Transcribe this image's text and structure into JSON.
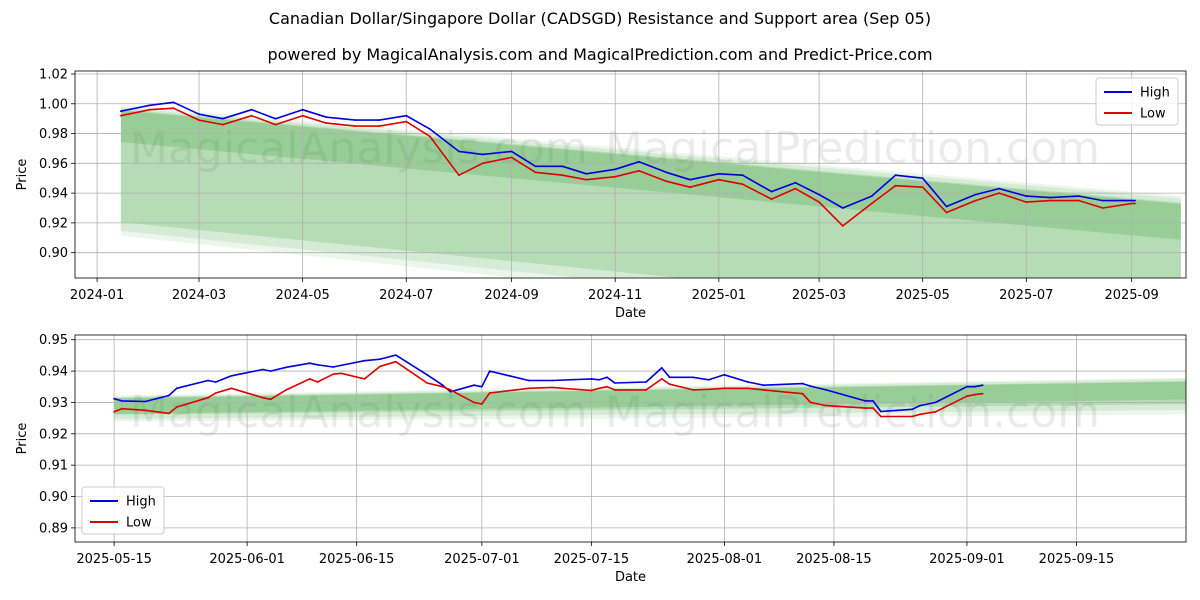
{
  "title": "Canadian Dollar/Singapore Dollar (CADSGD) Resistance and Support area (Sep 05)",
  "subtitle": "powered by MagicalAnalysis.com and MagicalPrediction.com and Predict-Price.com",
  "watermarks": [
    "MagicalAnalysis.com",
    "MagicalPrediction.com"
  ],
  "colors": {
    "high": "#0000dd",
    "low": "#dd0000",
    "band": "#2e9a2e"
  },
  "chart_data": [
    {
      "type": "line",
      "xlabel": "Date",
      "ylabel": "Price",
      "x_ticks": [
        "2024-01",
        "2024-03",
        "2024-05",
        "2024-07",
        "2024-09",
        "2024-11",
        "2025-01",
        "2025-03",
        "2025-05",
        "2025-07",
        "2025-09"
      ],
      "y_ticks": [
        "0.90",
        "0.92",
        "0.94",
        "0.96",
        "0.98",
        "1.00",
        "1.02"
      ],
      "xlim": [
        "2023-12-19",
        "2025-10-03"
      ],
      "ylim": [
        0.883,
        1.022
      ],
      "grid": true,
      "legend": "top-right",
      "series": [
        {
          "name": "High",
          "x": [
            "2024-01-15",
            "2024-02-01",
            "2024-02-15",
            "2024-03-01",
            "2024-03-15",
            "2024-04-01",
            "2024-04-15",
            "2024-05-01",
            "2024-05-15",
            "2024-06-01",
            "2024-06-15",
            "2024-07-01",
            "2024-07-15",
            "2024-08-01",
            "2024-08-15",
            "2024-09-01",
            "2024-09-15",
            "2024-10-01",
            "2024-10-15",
            "2024-11-01",
            "2024-11-15",
            "2024-12-01",
            "2024-12-15",
            "2025-01-01",
            "2025-01-15",
            "2025-02-01",
            "2025-02-15",
            "2025-03-01",
            "2025-03-15",
            "2025-04-01",
            "2025-04-15",
            "2025-05-01",
            "2025-05-15",
            "2025-06-01",
            "2025-06-15",
            "2025-07-01",
            "2025-07-15",
            "2025-08-01",
            "2025-08-15",
            "2025-09-01",
            "2025-09-03"
          ],
          "values": [
            0.995,
            0.999,
            1.001,
            0.993,
            0.99,
            0.996,
            0.99,
            0.996,
            0.991,
            0.989,
            0.989,
            0.992,
            0.983,
            0.968,
            0.966,
            0.968,
            0.958,
            0.958,
            0.953,
            0.956,
            0.961,
            0.954,
            0.949,
            0.953,
            0.952,
            0.941,
            0.947,
            0.939,
            0.93,
            0.938,
            0.952,
            0.95,
            0.931,
            0.939,
            0.943,
            0.938,
            0.937,
            0.938,
            0.935,
            0.935,
            0.935
          ]
        },
        {
          "name": "Low",
          "x": [
            "2024-01-15",
            "2024-02-01",
            "2024-02-15",
            "2024-03-01",
            "2024-03-15",
            "2024-04-01",
            "2024-04-15",
            "2024-05-01",
            "2024-05-15",
            "2024-06-01",
            "2024-06-15",
            "2024-07-01",
            "2024-07-15",
            "2024-08-01",
            "2024-08-15",
            "2024-09-01",
            "2024-09-15",
            "2024-10-01",
            "2024-10-15",
            "2024-11-01",
            "2024-11-15",
            "2024-12-01",
            "2024-12-15",
            "2025-01-01",
            "2025-01-15",
            "2025-02-01",
            "2025-02-15",
            "2025-03-01",
            "2025-03-15",
            "2025-04-01",
            "2025-04-15",
            "2025-05-01",
            "2025-05-15",
            "2025-06-01",
            "2025-06-15",
            "2025-07-01",
            "2025-07-15",
            "2025-08-01",
            "2025-08-15",
            "2025-09-01",
            "2025-09-03"
          ],
          "values": [
            0.992,
            0.996,
            0.997,
            0.989,
            0.986,
            0.992,
            0.986,
            0.992,
            0.987,
            0.985,
            0.985,
            0.988,
            0.978,
            0.952,
            0.96,
            0.964,
            0.954,
            0.952,
            0.949,
            0.951,
            0.955,
            0.948,
            0.944,
            0.949,
            0.946,
            0.936,
            0.943,
            0.934,
            0.918,
            0.933,
            0.945,
            0.944,
            0.927,
            0.935,
            0.94,
            0.934,
            0.935,
            0.935,
            0.93,
            0.933,
            0.933
          ]
        }
      ]
    },
    {
      "type": "line",
      "xlabel": "Date",
      "ylabel": "Price",
      "x_ticks": [
        "2025-05-15",
        "2025-06-01",
        "2025-06-15",
        "2025-07-01",
        "2025-07-15",
        "2025-08-01",
        "2025-08-15",
        "2025-09-01",
        "2025-09-15"
      ],
      "y_ticks": [
        "0.89",
        "0.90",
        "0.91",
        "0.92",
        "0.93",
        "0.94",
        "0.95"
      ],
      "xlim": [
        "2025-05-10",
        "2025-09-29"
      ],
      "ylim": [
        0.8855,
        0.9515
      ],
      "grid": true,
      "legend": "bottom-left",
      "series": [
        {
          "name": "High",
          "x": [
            "2025-05-15",
            "2025-05-16",
            "2025-05-19",
            "2025-05-22",
            "2025-05-23",
            "2025-05-27",
            "2025-05-28",
            "2025-05-30",
            "2025-06-03",
            "2025-06-04",
            "2025-06-06",
            "2025-06-09",
            "2025-06-10",
            "2025-06-12",
            "2025-06-13",
            "2025-06-16",
            "2025-06-18",
            "2025-06-20",
            "2025-06-24",
            "2025-06-26",
            "2025-06-27",
            "2025-06-30",
            "2025-07-01",
            "2025-07-02",
            "2025-07-07",
            "2025-07-10",
            "2025-07-15",
            "2025-07-16",
            "2025-07-17",
            "2025-07-18",
            "2025-07-22",
            "2025-07-24",
            "2025-07-25",
            "2025-07-28",
            "2025-07-30",
            "2025-08-01",
            "2025-08-04",
            "2025-08-06",
            "2025-08-11",
            "2025-08-12",
            "2025-08-14",
            "2025-08-19",
            "2025-08-20",
            "2025-08-21",
            "2025-08-25",
            "2025-08-26",
            "2025-08-28",
            "2025-09-01",
            "2025-09-02",
            "2025-09-03"
          ],
          "values": [
            0.9312,
            0.9305,
            0.9303,
            0.9322,
            0.9345,
            0.937,
            0.9365,
            0.9385,
            0.9405,
            0.94,
            0.9412,
            0.9425,
            0.942,
            0.9413,
            0.9418,
            0.9433,
            0.9438,
            0.9451,
            0.9388,
            0.9355,
            0.9334,
            0.9355,
            0.935,
            0.94,
            0.937,
            0.937,
            0.9375,
            0.9372,
            0.938,
            0.9362,
            0.9365,
            0.941,
            0.938,
            0.938,
            0.9372,
            0.9388,
            0.9365,
            0.9355,
            0.936,
            0.9352,
            0.934,
            0.9305,
            0.9305,
            0.9271,
            0.9278,
            0.929,
            0.93,
            0.935,
            0.935,
            0.9355
          ]
        },
        {
          "name": "Low",
          "x": [
            "2025-05-15",
            "2025-05-16",
            "2025-05-19",
            "2025-05-22",
            "2025-05-23",
            "2025-05-27",
            "2025-05-28",
            "2025-05-30",
            "2025-06-03",
            "2025-06-04",
            "2025-06-06",
            "2025-06-09",
            "2025-06-10",
            "2025-06-12",
            "2025-06-13",
            "2025-06-16",
            "2025-06-18",
            "2025-06-20",
            "2025-06-24",
            "2025-06-26",
            "2025-06-27",
            "2025-06-30",
            "2025-07-01",
            "2025-07-02",
            "2025-07-07",
            "2025-07-10",
            "2025-07-15",
            "2025-07-16",
            "2025-07-17",
            "2025-07-18",
            "2025-07-22",
            "2025-07-24",
            "2025-07-25",
            "2025-07-28",
            "2025-07-30",
            "2025-08-01",
            "2025-08-04",
            "2025-08-06",
            "2025-08-11",
            "2025-08-12",
            "2025-08-14",
            "2025-08-19",
            "2025-08-20",
            "2025-08-21",
            "2025-08-25",
            "2025-08-26",
            "2025-08-28",
            "2025-09-01",
            "2025-09-02",
            "2025-09-03"
          ],
          "values": [
            0.927,
            0.928,
            0.9275,
            0.9265,
            0.9285,
            0.9315,
            0.933,
            0.9345,
            0.9315,
            0.931,
            0.934,
            0.9375,
            0.9365,
            0.939,
            0.9393,
            0.9375,
            0.9415,
            0.943,
            0.9362,
            0.935,
            0.934,
            0.93,
            0.9295,
            0.933,
            0.9345,
            0.9348,
            0.9338,
            0.9345,
            0.935,
            0.934,
            0.934,
            0.9375,
            0.9358,
            0.934,
            0.9342,
            0.9345,
            0.9345,
            0.934,
            0.9328,
            0.93,
            0.929,
            0.9282,
            0.9282,
            0.9255,
            0.9255,
            0.9262,
            0.927,
            0.932,
            0.9325,
            0.9328
          ]
        }
      ]
    }
  ]
}
